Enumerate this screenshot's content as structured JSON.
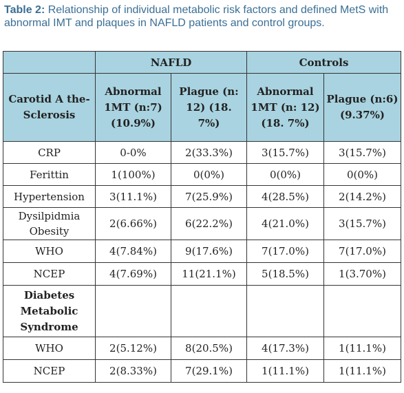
{
  "caption": {
    "label": "Table 2:",
    "text": " Relationship of individual metabolic risk factors and defined MetS with abnormal IMT and plaques in NAFLD patients and control groups."
  },
  "header": {
    "group_nafld": "NAFLD",
    "group_controls": "Controls",
    "row_header": "Carotid A the- Sclerosis",
    "columns": [
      "Abnormal 1MT (n:7) (10.9%)",
      "Plague (n: 12) (18. 7%)",
      "Abnormal 1MT (n: 12) (18. 7%)",
      "Plague (n:6) (9.37%)"
    ]
  },
  "rows": [
    {
      "label": "CRP",
      "values": [
        "0-0%",
        "2(33.3%)",
        "3(15.7%)",
        "3(15.7%)"
      ]
    },
    {
      "label": "Ferittin",
      "values": [
        "1(100%)",
        "0(0%)",
        "0(0%)",
        "0(0%)"
      ]
    },
    {
      "label": "Hypertension",
      "values": [
        "3(11.1%)",
        "7(25.9%)",
        "4(28.5%)",
        "2(14.2%)"
      ]
    },
    {
      "label": "Dysilpidmia Obesity",
      "values": [
        "2(6.66%)",
        "6(22.2%)",
        "4(21.0%)",
        "3(15.7%)"
      ]
    },
    {
      "label": "WHO",
      "values": [
        "4(7.84%)",
        "9(17.6%)",
        "7(17.0%)",
        "7(17.0%)"
      ]
    },
    {
      "label": "NCEP",
      "values": [
        "4(7.69%)",
        "11(21.1%)",
        "5(18.5%)",
        "1(3.70%)"
      ]
    }
  ],
  "section": {
    "label": "Diabetes Metabolic Syndrome"
  },
  "section_rows": [
    {
      "label": "WHO",
      "values": [
        "2(5.12%)",
        "8(20.5%)",
        "4(17.3%)",
        "1(11.1%)"
      ]
    },
    {
      "label": "NCEP",
      "values": [
        "2(8.33%)",
        "7(29.1%)",
        "1(11.1%)",
        "1(11.1%)"
      ]
    }
  ]
}
